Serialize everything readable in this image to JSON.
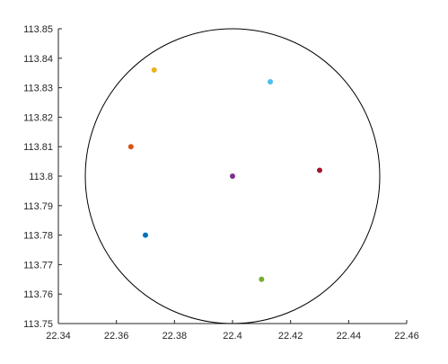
{
  "chart_data": {
    "type": "scatter",
    "title": "",
    "xlabel": "",
    "ylabel": "",
    "xlim": [
      22.34,
      22.46
    ],
    "ylim": [
      113.75,
      113.85
    ],
    "grid": false,
    "legend": "none",
    "x_ticks": [
      "22.34",
      "22.36",
      "22.38",
      "22.4",
      "22.42",
      "22.44",
      "22.46"
    ],
    "y_ticks": [
      "113.75",
      "113.76",
      "113.77",
      "113.78",
      "113.79",
      "113.8",
      "113.81",
      "113.82",
      "113.83",
      "113.84",
      "113.85"
    ],
    "circle": {
      "center_x": 22.4,
      "center_y": 113.8,
      "radius_y": 0.05,
      "color": "#000000"
    },
    "points": [
      {
        "x": 22.373,
        "y": 113.836,
        "color": "#EDB120"
      },
      {
        "x": 22.413,
        "y": 113.832,
        "color": "#4DBEEE"
      },
      {
        "x": 22.365,
        "y": 113.81,
        "color": "#D95319"
      },
      {
        "x": 22.4,
        "y": 113.8,
        "color": "#7E2F8E"
      },
      {
        "x": 22.43,
        "y": 113.802,
        "color": "#A2142F"
      },
      {
        "x": 22.37,
        "y": 113.78,
        "color": "#0072BD"
      },
      {
        "x": 22.41,
        "y": 113.765,
        "color": "#77AC30"
      }
    ]
  }
}
